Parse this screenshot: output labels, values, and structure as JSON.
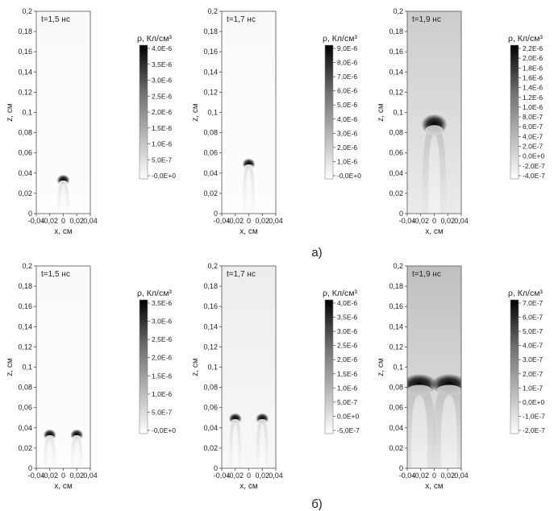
{
  "row_labels": [
    "а)",
    "б)"
  ],
  "chart_data": [
    {
      "type": "heatmap",
      "row": 0,
      "title": "t=1,5 нс",
      "xlabel": "x, см",
      "ylabel": "z, см",
      "xlim": [
        -0.04,
        0.04
      ],
      "ylim": [
        0,
        0.2
      ],
      "x_ticks": [
        "-0,04",
        "-0,02",
        "0",
        "0,02",
        "0,04"
      ],
      "y_ticks": [
        "0",
        "0,02",
        "0,04",
        "0,06",
        "0,08",
        "0,1",
        "0,12",
        "0,14",
        "0,16",
        "0,18",
        "0,2"
      ],
      "colorbar_label": "ρ, Кл/см³",
      "colorbar_ticks": [
        "4,0E-6",
        "3,5E-6",
        "3,0E-6",
        "2,5E-6",
        "2,0E-6",
        "1,5E-6",
        "1,0E-6",
        "5,0E-7",
        "-0,0E+0"
      ],
      "background_level": 0.02,
      "streamers": [
        {
          "x": 0.0,
          "head_z": 0.033
        }
      ]
    },
    {
      "type": "heatmap",
      "row": 0,
      "title": "t=1,7 нс",
      "xlabel": "x, см",
      "ylabel": "z, см",
      "xlim": [
        -0.04,
        0.04
      ],
      "ylim": [
        0,
        0.2
      ],
      "x_ticks": [
        "-0,04",
        "-0,02",
        "0",
        "0,02",
        "0,04"
      ],
      "y_ticks": [
        "0",
        "0,02",
        "0,04",
        "0,06",
        "0,08",
        "0,1",
        "0,12",
        "0,14",
        "0,16",
        "0,18",
        "0,2"
      ],
      "colorbar_label": "ρ, Кл/см³",
      "colorbar_ticks": [
        "9,0E-6",
        "8,0E-6",
        "7,0E-6",
        "6,0E-6",
        "5,0E-6",
        "4,0E-6",
        "3,0E-6",
        "2,0E-6",
        "1,0E-6",
        "-0,0E+0"
      ],
      "background_level": 0.02,
      "streamers": [
        {
          "x": 0.0,
          "head_z": 0.049
        }
      ]
    },
    {
      "type": "heatmap",
      "row": 0,
      "title": "t=1,9 нс",
      "xlabel": "x, см",
      "ylabel": "z, см",
      "xlim": [
        -0.04,
        0.04
      ],
      "ylim": [
        0,
        0.2
      ],
      "x_ticks": [
        "-0,04",
        "-0,02",
        "0",
        "0,02",
        "0,04"
      ],
      "y_ticks": [
        "0",
        "0,02",
        "0,04",
        "0,06",
        "0,08",
        "0,1",
        "0,12",
        "0,14",
        "0,16",
        "0,18",
        "0,2"
      ],
      "colorbar_label": "ρ, Кл/см³",
      "colorbar_ticks": [
        "2,2E-6",
        "2,0E-6",
        "1,8E-6",
        "1,6E-6",
        "1,4E-6",
        "1,2E-6",
        "1,0E-6",
        "8,0E-7",
        "6,0E-7",
        "4,0E-7",
        "2,0E-7",
        "0,0E+0",
        "-2,0E-7",
        "-4,0E-7"
      ],
      "background_level": 0.2,
      "streamers": [
        {
          "x": 0.0,
          "head_z": 0.088
        }
      ]
    },
    {
      "type": "heatmap",
      "row": 1,
      "title": "t=1,5 нс",
      "xlabel": "x, см",
      "ylabel": "z, см",
      "xlim": [
        -0.04,
        0.04
      ],
      "ylim": [
        0,
        0.2
      ],
      "x_ticks": [
        "-0,04",
        "-0,02",
        "0",
        "0,02",
        "0,04"
      ],
      "y_ticks": [
        "0",
        "0,02",
        "0,04",
        "0,06",
        "0,08",
        "0,1",
        "0,12",
        "0,14",
        "0,16",
        "0,18",
        "0,2"
      ],
      "colorbar_label": "ρ, Кл/см³",
      "colorbar_ticks": [
        "3,5E-6",
        "3,0E-6",
        "2,5E-6",
        "2,0E-6",
        "1,5E-6",
        "1,0E-6",
        "5,0E-7",
        "-0,0E+0"
      ],
      "background_level": 0.02,
      "streamers": [
        {
          "x": -0.02,
          "head_z": 0.033
        },
        {
          "x": 0.02,
          "head_z": 0.033
        }
      ]
    },
    {
      "type": "heatmap",
      "row": 1,
      "title": "t=1,7 нс",
      "xlabel": "x, см",
      "ylabel": "z, см",
      "xlim": [
        -0.04,
        0.04
      ],
      "ylim": [
        0,
        0.2
      ],
      "x_ticks": [
        "-0,04",
        "-0,02",
        "0",
        "0,02",
        "0,04"
      ],
      "y_ticks": [
        "0",
        "0,02",
        "0,04",
        "0,06",
        "0,08",
        "0,1",
        "0,12",
        "0,14",
        "0,16",
        "0,18",
        "0,2"
      ],
      "colorbar_label": "ρ, Кл/см³",
      "colorbar_ticks": [
        "4,0E-6",
        "3,5E-6",
        "3,0E-6",
        "2,5E-6",
        "2,0E-6",
        "1,5E-6",
        "1,0E-6",
        "5,0E-7",
        "0,0E+0",
        "-5,0E-7"
      ],
      "background_level": 0.07,
      "streamers": [
        {
          "x": -0.02,
          "head_z": 0.049
        },
        {
          "x": 0.02,
          "head_z": 0.049
        }
      ]
    },
    {
      "type": "heatmap",
      "row": 1,
      "title": "t=1,9 нс",
      "xlabel": "x, см",
      "ylabel": "z, см",
      "xlim": [
        -0.04,
        0.04
      ],
      "ylim": [
        0,
        0.2
      ],
      "x_ticks": [
        "-0,04",
        "-0,02",
        "0",
        "0,02",
        "0,04"
      ],
      "y_ticks": [
        "0",
        "0,02",
        "0,04",
        "0,06",
        "0,08",
        "0,1",
        "0,12",
        "0,14",
        "0,16",
        "0,18",
        "0,2"
      ],
      "colorbar_label": "ρ, Кл/см³",
      "colorbar_ticks": [
        "7,0E-7",
        "6,0E-7",
        "5,0E-7",
        "4,0E-7",
        "3,0E-7",
        "2,0E-7",
        "1,0E-7",
        "0,0E+0",
        "-1,0E-7",
        "-2,0E-7"
      ],
      "background_level": 0.25,
      "streamers": [
        {
          "x": -0.022,
          "head_z": 0.083
        },
        {
          "x": 0.022,
          "head_z": 0.083
        }
      ]
    }
  ]
}
